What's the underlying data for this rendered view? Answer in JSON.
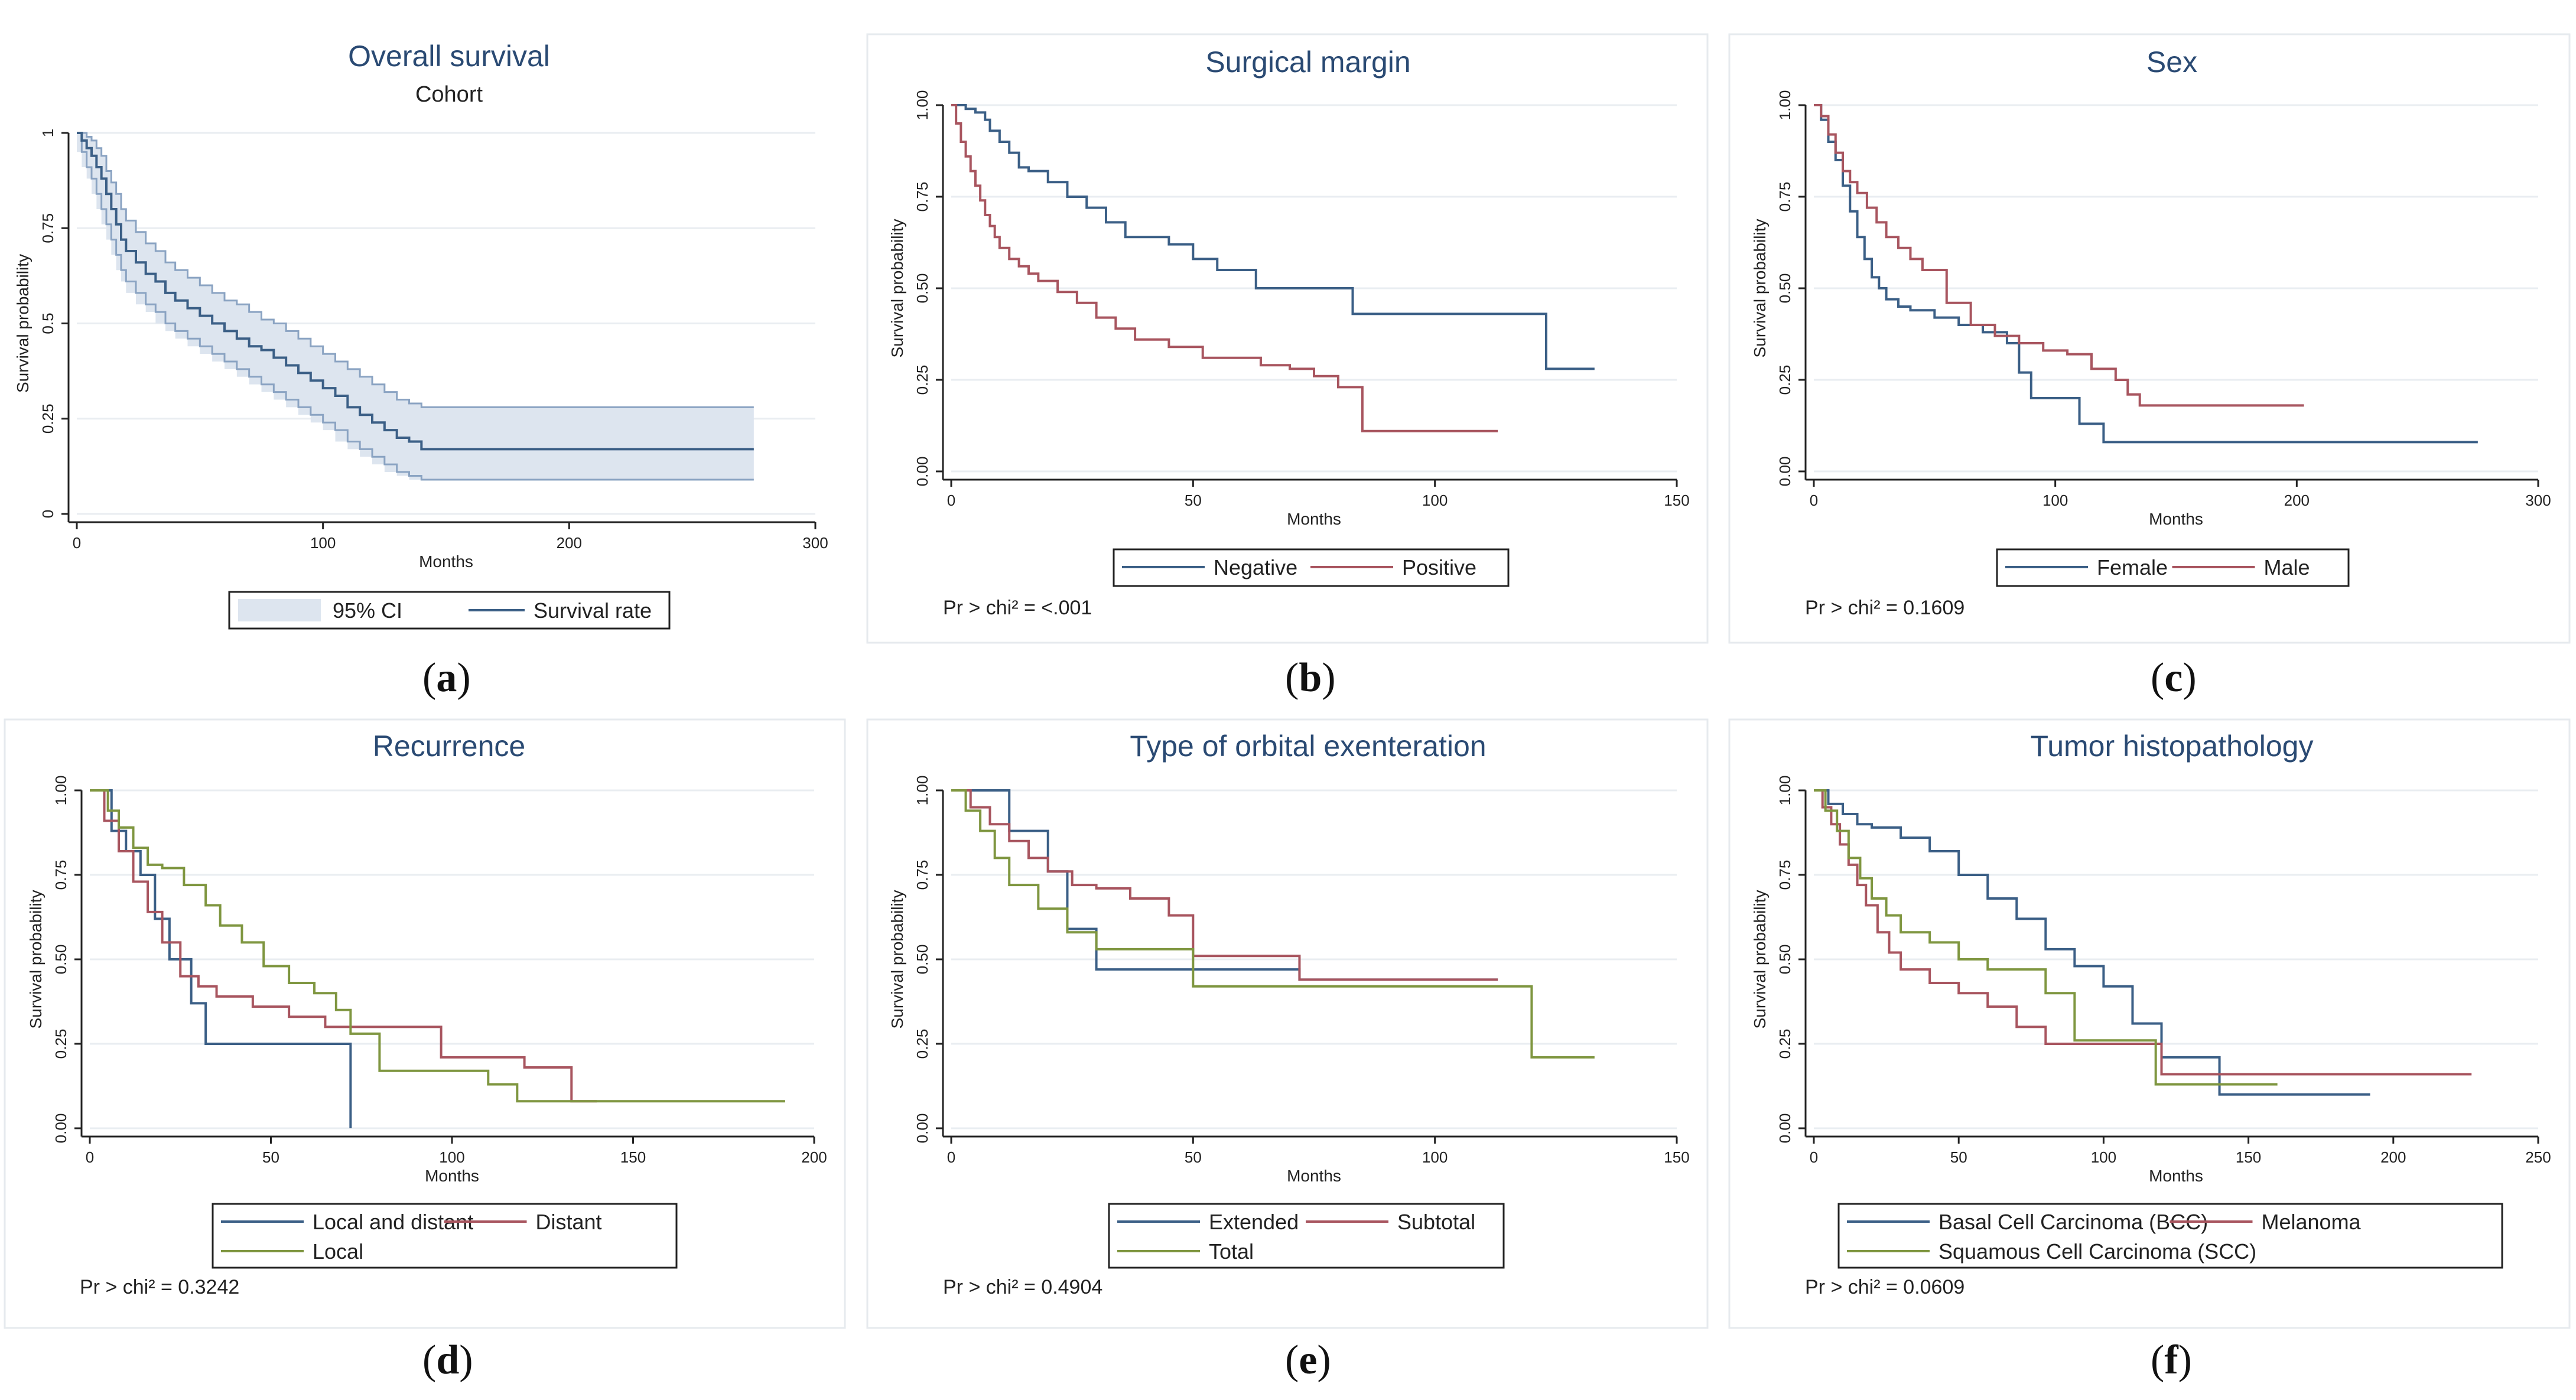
{
  "colors": {
    "blue": "#3b5f86",
    "red": "#a8555f",
    "green": "#7f9640",
    "ci_fill": "#dde5ef",
    "ci_line": "#8aa3c2"
  },
  "chart_data": [
    {
      "id": "a",
      "type": "line",
      "caption": "a",
      "title": "Overall survival",
      "subtitle": "Cohort",
      "xlabel": "Months",
      "ylabel": "Survival probability",
      "xlim": [
        0,
        300
      ],
      "ylim": [
        0,
        1
      ],
      "xticks": [
        "0",
        "100",
        "200",
        "300"
      ],
      "xtick_values": [
        0,
        100,
        200,
        300
      ],
      "yticks": [
        "0",
        "0.25",
        "0.5",
        "0.75",
        "1"
      ],
      "ytick_values": [
        0,
        0.25,
        0.5,
        0.75,
        1
      ],
      "legend": [
        "95% CI",
        "Survival rate"
      ],
      "series": [
        {
          "name": "Survival rate",
          "color": "blue",
          "x": [
            0,
            2,
            4,
            6,
            8,
            10,
            12,
            14,
            16,
            18,
            20,
            24,
            28,
            32,
            36,
            40,
            45,
            50,
            55,
            60,
            65,
            70,
            75,
            80,
            85,
            90,
            95,
            100,
            105,
            110,
            115,
            120,
            125,
            130,
            135,
            140,
            275
          ],
          "y": [
            1.0,
            0.98,
            0.96,
            0.94,
            0.91,
            0.88,
            0.84,
            0.8,
            0.76,
            0.72,
            0.69,
            0.66,
            0.63,
            0.61,
            0.58,
            0.56,
            0.54,
            0.52,
            0.5,
            0.48,
            0.46,
            0.44,
            0.43,
            0.41,
            0.39,
            0.37,
            0.35,
            0.33,
            0.31,
            0.28,
            0.26,
            0.24,
            0.22,
            0.2,
            0.19,
            0.17,
            0.17
          ]
        },
        {
          "name": "95% CI upper",
          "role": "ci_upper",
          "x": [
            0,
            2,
            4,
            6,
            8,
            10,
            12,
            14,
            16,
            18,
            20,
            24,
            28,
            32,
            36,
            40,
            45,
            50,
            55,
            60,
            65,
            70,
            75,
            80,
            85,
            90,
            95,
            100,
            105,
            110,
            115,
            120,
            125,
            130,
            135,
            140,
            275
          ],
          "y": [
            1.0,
            1.0,
            0.99,
            0.98,
            0.96,
            0.94,
            0.9,
            0.87,
            0.84,
            0.8,
            0.77,
            0.74,
            0.71,
            0.69,
            0.66,
            0.64,
            0.62,
            0.6,
            0.58,
            0.56,
            0.55,
            0.53,
            0.51,
            0.5,
            0.48,
            0.46,
            0.44,
            0.42,
            0.4,
            0.38,
            0.36,
            0.34,
            0.32,
            0.3,
            0.29,
            0.28,
            0.28
          ]
        },
        {
          "name": "95% CI lower",
          "role": "ci_lower",
          "x": [
            0,
            2,
            4,
            6,
            8,
            10,
            12,
            14,
            16,
            18,
            20,
            24,
            28,
            32,
            36,
            40,
            45,
            50,
            55,
            60,
            65,
            70,
            75,
            80,
            85,
            90,
            95,
            100,
            105,
            110,
            115,
            120,
            125,
            130,
            135,
            140,
            275
          ],
          "y": [
            1.0,
            0.95,
            0.91,
            0.88,
            0.84,
            0.8,
            0.76,
            0.72,
            0.68,
            0.64,
            0.61,
            0.58,
            0.55,
            0.53,
            0.5,
            0.48,
            0.46,
            0.44,
            0.42,
            0.4,
            0.38,
            0.36,
            0.34,
            0.32,
            0.3,
            0.28,
            0.26,
            0.24,
            0.22,
            0.19,
            0.17,
            0.15,
            0.13,
            0.11,
            0.1,
            0.09,
            0.09
          ]
        }
      ]
    },
    {
      "id": "b",
      "type": "line",
      "caption": "b",
      "title": "Surgical margin",
      "xlabel": "Months",
      "ylabel": "Survival probability",
      "xlim": [
        0,
        150
      ],
      "ylim": [
        0,
        1
      ],
      "xticks": [
        "0",
        "50",
        "100",
        "150"
      ],
      "xtick_values": [
        0,
        50,
        100,
        150
      ],
      "yticks": [
        "0.00",
        "0.25",
        "0.50",
        "0.75",
        "1.00"
      ],
      "ytick_values": [
        0,
        0.25,
        0.5,
        0.75,
        1
      ],
      "legend": [
        "Negative",
        "Positive"
      ],
      "p_value": "Pr > chi² = <.001",
      "series": [
        {
          "name": "Negative",
          "color": "blue",
          "x": [
            0,
            3,
            5,
            7,
            8,
            10,
            12,
            14,
            16,
            20,
            24,
            28,
            32,
            36,
            45,
            50,
            55,
            63,
            70,
            83,
            100,
            123,
            133
          ],
          "y": [
            1.0,
            0.99,
            0.98,
            0.96,
            0.93,
            0.9,
            0.87,
            0.83,
            0.82,
            0.79,
            0.75,
            0.72,
            0.68,
            0.64,
            0.62,
            0.58,
            0.55,
            0.5,
            0.5,
            0.43,
            0.43,
            0.28,
            0.28
          ]
        },
        {
          "name": "Positive",
          "color": "red",
          "x": [
            0,
            1,
            2,
            3,
            4,
            5,
            6,
            7,
            8,
            9,
            10,
            12,
            14,
            16,
            18,
            22,
            26,
            30,
            34,
            38,
            45,
            52,
            58,
            64,
            70,
            75,
            80,
            85,
            95,
            110,
            113
          ],
          "y": [
            1.0,
            0.95,
            0.9,
            0.86,
            0.82,
            0.78,
            0.74,
            0.7,
            0.67,
            0.64,
            0.61,
            0.58,
            0.56,
            0.54,
            0.52,
            0.49,
            0.46,
            0.42,
            0.39,
            0.36,
            0.34,
            0.31,
            0.31,
            0.29,
            0.28,
            0.26,
            0.23,
            0.11,
            0.11,
            0.11,
            0.11
          ]
        }
      ]
    },
    {
      "id": "c",
      "type": "line",
      "caption": "c",
      "title": "Sex",
      "xlabel": "Months",
      "ylabel": "Survival probability",
      "xlim": [
        0,
        300
      ],
      "ylim": [
        0,
        1
      ],
      "xticks": [
        "0",
        "100",
        "200",
        "300"
      ],
      "xtick_values": [
        0,
        100,
        200,
        300
      ],
      "yticks": [
        "0.00",
        "0.25",
        "0.50",
        "0.75",
        "1.00"
      ],
      "ytick_values": [
        0,
        0.25,
        0.5,
        0.75,
        1
      ],
      "legend": [
        "Female",
        "Male"
      ],
      "p_value": "Pr > chi² = 0.1609",
      "series": [
        {
          "name": "Female",
          "color": "blue",
          "x": [
            0,
            3,
            6,
            9,
            12,
            15,
            18,
            21,
            24,
            27,
            30,
            35,
            40,
            50,
            60,
            70,
            80,
            85,
            90,
            100,
            110,
            120,
            122,
            140,
            200,
            275
          ],
          "y": [
            1.0,
            0.96,
            0.9,
            0.85,
            0.78,
            0.71,
            0.64,
            0.58,
            0.53,
            0.5,
            0.47,
            0.45,
            0.44,
            0.42,
            0.4,
            0.38,
            0.35,
            0.27,
            0.2,
            0.2,
            0.13,
            0.08,
            0.08,
            0.08,
            0.08,
            0.08
          ]
        },
        {
          "name": "Male",
          "color": "red",
          "x": [
            0,
            3,
            6,
            9,
            12,
            15,
            18,
            22,
            26,
            30,
            35,
            40,
            45,
            55,
            65,
            75,
            85,
            95,
            105,
            115,
            125,
            130,
            135,
            150,
            180,
            203
          ],
          "y": [
            1.0,
            0.97,
            0.92,
            0.87,
            0.82,
            0.79,
            0.76,
            0.72,
            0.68,
            0.64,
            0.61,
            0.58,
            0.55,
            0.46,
            0.4,
            0.37,
            0.35,
            0.33,
            0.32,
            0.28,
            0.25,
            0.21,
            0.18,
            0.18,
            0.18,
            0.18
          ]
        }
      ]
    },
    {
      "id": "d",
      "type": "line",
      "caption": "d",
      "title": "Recurrence",
      "xlabel": "Months",
      "ylabel": "Survival probability",
      "xlim": [
        0,
        200
      ],
      "ylim": [
        0,
        1
      ],
      "xticks": [
        "0",
        "50",
        "100",
        "150",
        "200"
      ],
      "xtick_values": [
        0,
        50,
        100,
        150,
        200
      ],
      "yticks": [
        "0.00",
        "0.25",
        "0.50",
        "0.75",
        "1.00"
      ],
      "ytick_values": [
        0,
        0.25,
        0.5,
        0.75,
        1
      ],
      "legend": [
        "Local and distant",
        "Distant",
        "Local"
      ],
      "p_value": "Pr > chi² = 0.3242",
      "series": [
        {
          "name": "Local and distant",
          "color": "blue",
          "x": [
            0,
            6,
            10,
            14,
            18,
            22,
            28,
            32,
            40,
            55,
            70,
            72,
            72
          ],
          "y": [
            1.0,
            0.88,
            0.82,
            0.75,
            0.62,
            0.5,
            0.37,
            0.25,
            0.25,
            0.25,
            0.25,
            0.25,
            0.0
          ]
        },
        {
          "name": "Distant",
          "color": "red",
          "x": [
            0,
            4,
            8,
            12,
            16,
            20,
            25,
            30,
            35,
            45,
            55,
            65,
            75,
            90,
            97,
            105,
            120,
            133,
            140
          ],
          "y": [
            1.0,
            0.91,
            0.82,
            0.73,
            0.64,
            0.55,
            0.45,
            0.42,
            0.39,
            0.36,
            0.33,
            0.3,
            0.3,
            0.3,
            0.21,
            0.21,
            0.18,
            0.08,
            0.08
          ]
        },
        {
          "name": "Local",
          "color": "green",
          "x": [
            0,
            5,
            8,
            12,
            16,
            20,
            26,
            32,
            36,
            42,
            48,
            55,
            62,
            68,
            72,
            80,
            95,
            110,
            118,
            130,
            150,
            192
          ],
          "y": [
            1.0,
            0.94,
            0.89,
            0.83,
            0.78,
            0.77,
            0.72,
            0.66,
            0.6,
            0.55,
            0.48,
            0.43,
            0.4,
            0.35,
            0.28,
            0.17,
            0.17,
            0.13,
            0.08,
            0.08,
            0.08,
            0.08
          ]
        }
      ]
    },
    {
      "id": "e",
      "type": "line",
      "caption": "e",
      "title": "Type of orbital exenteration",
      "xlabel": "Months",
      "ylabel": "Survival probability",
      "xlim": [
        0,
        150
      ],
      "ylim": [
        0,
        1
      ],
      "xticks": [
        "0",
        "50",
        "100",
        "150"
      ],
      "xtick_values": [
        0,
        50,
        100,
        150
      ],
      "yticks": [
        "0.00",
        "0.25",
        "0.50",
        "0.75",
        "1.00"
      ],
      "ytick_values": [
        0,
        0.25,
        0.5,
        0.75,
        1
      ],
      "legend": [
        "Extended",
        "Subtotal",
        "Total"
      ],
      "p_value": "Pr > chi² = 0.4904",
      "series": [
        {
          "name": "Extended",
          "color": "blue",
          "x": [
            0,
            10,
            12,
            20,
            24,
            30,
            35,
            50,
            60,
            72,
            90,
            113
          ],
          "y": [
            1.0,
            1.0,
            0.88,
            0.76,
            0.59,
            0.47,
            0.47,
            0.47,
            0.47,
            0.44,
            0.44,
            0.44
          ]
        },
        {
          "name": "Subtotal",
          "color": "red",
          "x": [
            0,
            4,
            8,
            12,
            16,
            20,
            25,
            30,
            37,
            45,
            50,
            60,
            72,
            90,
            113
          ],
          "y": [
            1.0,
            0.95,
            0.9,
            0.85,
            0.8,
            0.76,
            0.72,
            0.71,
            0.68,
            0.63,
            0.51,
            0.51,
            0.44,
            0.44,
            0.44
          ]
        },
        {
          "name": "Total",
          "color": "green",
          "x": [
            0,
            3,
            6,
            9,
            12,
            18,
            24,
            30,
            40,
            50,
            60,
            80,
            100,
            118,
            120,
            133
          ],
          "y": [
            1.0,
            0.94,
            0.88,
            0.8,
            0.72,
            0.65,
            0.58,
            0.53,
            0.53,
            0.42,
            0.42,
            0.42,
            0.42,
            0.42,
            0.21,
            0.21
          ]
        }
      ]
    },
    {
      "id": "f",
      "type": "line",
      "caption": "f",
      "title": "Tumor histopathology",
      "xlabel": "Months",
      "ylabel": "Survival probability",
      "xlim": [
        0,
        250
      ],
      "ylim": [
        0,
        1
      ],
      "xticks": [
        "0",
        "50",
        "100",
        "150",
        "200",
        "250"
      ],
      "xtick_values": [
        0,
        50,
        100,
        150,
        200,
        250
      ],
      "yticks": [
        "0.00",
        "0.25",
        "0.50",
        "0.75",
        "1.00"
      ],
      "ytick_values": [
        0,
        0.25,
        0.5,
        0.75,
        1
      ],
      "legend": [
        "Basal Cell Carcinoma (BCC)",
        "Melanoma",
        "Squamous Cell Carcinoma (SCC)"
      ],
      "p_value": "Pr > chi² = 0.0609",
      "series": [
        {
          "name": "Basal Cell Carcinoma (BCC)",
          "color": "blue",
          "x": [
            0,
            5,
            10,
            15,
            20,
            30,
            40,
            50,
            60,
            70,
            80,
            90,
            100,
            110,
            120,
            125,
            140,
            150,
            192
          ],
          "y": [
            1.0,
            0.96,
            0.93,
            0.9,
            0.89,
            0.86,
            0.82,
            0.75,
            0.68,
            0.62,
            0.53,
            0.48,
            0.42,
            0.31,
            0.21,
            0.21,
            0.1,
            0.1,
            0.1
          ]
        },
        {
          "name": "Melanoma",
          "color": "red",
          "x": [
            0,
            3,
            6,
            9,
            12,
            15,
            18,
            22,
            26,
            30,
            40,
            50,
            60,
            70,
            80,
            90,
            100,
            110,
            120,
            140,
            227
          ],
          "y": [
            1.0,
            0.95,
            0.9,
            0.84,
            0.78,
            0.72,
            0.66,
            0.58,
            0.52,
            0.47,
            0.43,
            0.4,
            0.36,
            0.3,
            0.25,
            0.25,
            0.25,
            0.25,
            0.16,
            0.16,
            0.16
          ]
        },
        {
          "name": "Squamous Cell Carcinoma (SCC)",
          "color": "green",
          "x": [
            0,
            4,
            8,
            12,
            16,
            20,
            25,
            30,
            40,
            50,
            60,
            70,
            80,
            90,
            100,
            110,
            118,
            130,
            160
          ],
          "y": [
            1.0,
            0.94,
            0.88,
            0.8,
            0.74,
            0.68,
            0.63,
            0.58,
            0.55,
            0.5,
            0.47,
            0.47,
            0.4,
            0.26,
            0.26,
            0.26,
            0.13,
            0.13,
            0.13
          ]
        }
      ]
    }
  ]
}
